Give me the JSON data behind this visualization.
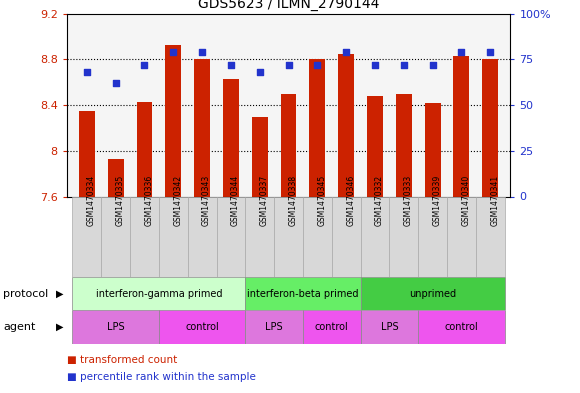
{
  "title": "GDS5623 / ILMN_2790144",
  "samples": [
    "GSM1470334",
    "GSM1470335",
    "GSM1470336",
    "GSM1470342",
    "GSM1470343",
    "GSM1470344",
    "GSM1470337",
    "GSM1470338",
    "GSM1470345",
    "GSM1470346",
    "GSM1470332",
    "GSM1470333",
    "GSM1470339",
    "GSM1470340",
    "GSM1470341"
  ],
  "transformed_count": [
    8.35,
    7.93,
    8.43,
    8.93,
    8.8,
    8.63,
    8.3,
    8.5,
    8.8,
    8.85,
    8.48,
    8.5,
    8.42,
    8.83,
    8.8
  ],
  "percentile_rank": [
    68,
    62,
    72,
    79,
    79,
    72,
    68,
    72,
    72,
    79,
    72,
    72,
    72,
    79,
    79
  ],
  "ylim_left": [
    7.6,
    9.2
  ],
  "ylim_right": [
    0,
    100
  ],
  "yticks_left": [
    7.6,
    8.0,
    8.4,
    8.8,
    9.2
  ],
  "yticks_right": [
    0,
    25,
    50,
    75,
    100
  ],
  "ytick_labels_left": [
    "7.6",
    "8",
    "8.4",
    "8.8",
    "9.2"
  ],
  "ytick_labels_right": [
    "0",
    "25",
    "50",
    "75",
    "100%"
  ],
  "bar_color": "#cc2200",
  "dot_color": "#2233cc",
  "protocol_groups": [
    {
      "label": "interferon-gamma primed",
      "start": 0,
      "end": 5,
      "color": "#ccffcc"
    },
    {
      "label": "interferon-beta primed",
      "start": 6,
      "end": 9,
      "color": "#66ee66"
    },
    {
      "label": "unprimed",
      "start": 10,
      "end": 14,
      "color": "#44cc44"
    }
  ],
  "agent_groups": [
    {
      "label": "LPS",
      "start": 0,
      "end": 2,
      "color": "#dd77dd"
    },
    {
      "label": "control",
      "start": 3,
      "end": 5,
      "color": "#ee55ee"
    },
    {
      "label": "LPS",
      "start": 6,
      "end": 7,
      "color": "#dd77dd"
    },
    {
      "label": "control",
      "start": 8,
      "end": 9,
      "color": "#ee55ee"
    },
    {
      "label": "LPS",
      "start": 10,
      "end": 11,
      "color": "#dd77dd"
    },
    {
      "label": "control",
      "start": 12,
      "end": 14,
      "color": "#ee55ee"
    }
  ],
  "legend_items": [
    {
      "label": "transformed count",
      "color": "#cc2200"
    },
    {
      "label": "percentile rank within the sample",
      "color": "#2233cc"
    }
  ],
  "bg_color": "#ffffff",
  "tick_label_color_left": "#cc2200",
  "tick_label_color_right": "#2233cc",
  "sample_bg_color": "#d8d8d8",
  "sample_border_color": "#aaaaaa"
}
